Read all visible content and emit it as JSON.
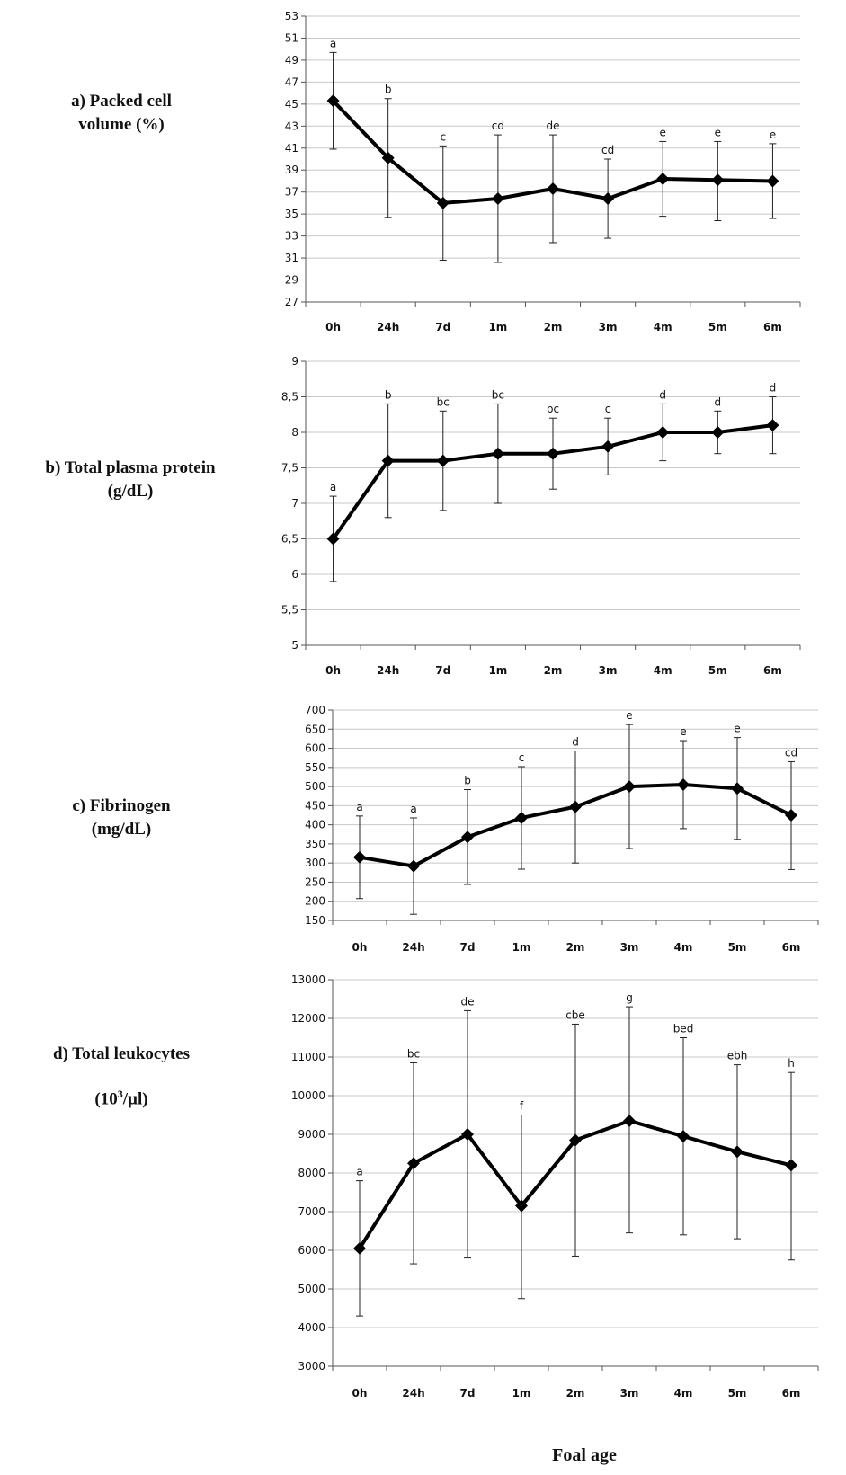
{
  "panels": [
    {
      "label_line1": "a) Packed cell",
      "label_line2": "volume (%)"
    },
    {
      "label_line1": "b) Total plasma protein",
      "label_line2": "(g/dL)"
    },
    {
      "label_line1": "c) Fibrinogen",
      "label_line2": "(mg/dL)"
    },
    {
      "label_line1": "d) Total leukocytes",
      "label_line2_base": "(10",
      "label_line2_sup": "3",
      "label_line2_tail": "/µl)"
    }
  ],
  "x_axis_title": "Foal age",
  "colors": {
    "line": "#000000",
    "grid": "#c8c8c8",
    "axis": "#555555"
  },
  "chart_data": [
    {
      "type": "line",
      "title": "",
      "categories": [
        "0h",
        "24h",
        "7d",
        "1m",
        "2m",
        "3m",
        "4m",
        "5m",
        "6m"
      ],
      "series": [
        {
          "values": [
            45.3,
            40.1,
            36.0,
            36.4,
            37.3,
            36.4,
            38.2,
            38.1,
            38.0
          ],
          "error_high": [
            49.7,
            45.5,
            41.2,
            42.2,
            42.2,
            40.0,
            41.6,
            41.6,
            41.4
          ],
          "error_low": [
            40.9,
            34.7,
            30.8,
            30.6,
            32.4,
            32.8,
            34.8,
            34.4,
            34.6
          ],
          "letters": [
            "a",
            "b",
            "c",
            "cd",
            "de",
            "cd",
            "e",
            "e",
            "e"
          ]
        }
      ],
      "ylim": [
        27,
        53
      ],
      "yticks": [
        27,
        29,
        31,
        33,
        35,
        37,
        39,
        41,
        43,
        45,
        47,
        49,
        51,
        53
      ],
      "yticklabels": [
        "27",
        "29",
        "31",
        "33",
        "35",
        "37",
        "39",
        "41",
        "43",
        "45",
        "47",
        "49",
        "51",
        "53"
      ],
      "grid": true
    },
    {
      "type": "line",
      "title": "",
      "categories": [
        "0h",
        "24h",
        "7d",
        "1m",
        "2m",
        "3m",
        "4m",
        "5m",
        "6m"
      ],
      "series": [
        {
          "values": [
            6.5,
            7.6,
            7.6,
            7.7,
            7.7,
            7.8,
            8.0,
            8.0,
            8.1
          ],
          "error_high": [
            7.1,
            8.4,
            8.3,
            8.4,
            8.2,
            8.2,
            8.4,
            8.3,
            8.5
          ],
          "error_low": [
            5.9,
            6.8,
            6.9,
            7.0,
            7.2,
            7.4,
            7.6,
            7.7,
            7.7
          ],
          "letters": [
            "a",
            "b",
            "bc",
            "bc",
            "bc",
            "c",
            "d",
            "d",
            "d"
          ]
        }
      ],
      "ylim": [
        5,
        9
      ],
      "yticks": [
        5,
        5.5,
        6,
        6.5,
        7,
        7.5,
        8,
        8.5,
        9
      ],
      "yticklabels": [
        "5",
        "5,5",
        "6",
        "6,5",
        "7",
        "7,5",
        "8",
        "8,5",
        "9"
      ],
      "grid": true
    },
    {
      "type": "line",
      "title": "",
      "categories": [
        "0h",
        "24h",
        "7d",
        "1m",
        "2m",
        "3m",
        "4m",
        "5m",
        "6m"
      ],
      "series": [
        {
          "values": [
            315,
            292,
            368,
            418,
            447,
            500,
            505,
            495,
            425
          ],
          "error_high": [
            423,
            418,
            492,
            552,
            593,
            662,
            620,
            628,
            565
          ],
          "error_low": [
            207,
            166,
            244,
            284,
            300,
            338,
            390,
            362,
            283
          ],
          "letters": [
            "a",
            "a",
            "b",
            "c",
            "d",
            "e",
            "e",
            "e",
            "cd"
          ]
        }
      ],
      "ylim": [
        150,
        700
      ],
      "yticks": [
        150,
        200,
        250,
        300,
        350,
        400,
        450,
        500,
        550,
        600,
        650,
        700
      ],
      "yticklabels": [
        "150",
        "200",
        "250",
        "300",
        "350",
        "400",
        "450",
        "500",
        "550",
        "600",
        "650",
        "700"
      ],
      "grid": true
    },
    {
      "type": "line",
      "title": "",
      "categories": [
        "0h",
        "24h",
        "7d",
        "1m",
        "2m",
        "3m",
        "4m",
        "5m",
        "6m"
      ],
      "series": [
        {
          "values": [
            6050,
            8250,
            9000,
            7150,
            8850,
            9350,
            8950,
            8550,
            8200
          ],
          "error_high": [
            7800,
            10850,
            12200,
            9500,
            11850,
            12300,
            11500,
            10800,
            10600
          ],
          "error_low": [
            4300,
            5650,
            5800,
            4750,
            5850,
            6450,
            6400,
            6300,
            5750
          ],
          "letters": [
            "a",
            "bc",
            "de",
            "f",
            "cbe",
            "g",
            "bed",
            "ebh",
            "h"
          ]
        }
      ],
      "ylim": [
        3000,
        13000
      ],
      "yticks": [
        3000,
        4000,
        5000,
        6000,
        7000,
        8000,
        9000,
        10000,
        11000,
        12000,
        13000
      ],
      "yticklabels": [
        "3000",
        "4000",
        "5000",
        "6000",
        "7000",
        "8000",
        "9000",
        "10000",
        "11000",
        "12000",
        "13000"
      ],
      "grid": true
    }
  ]
}
